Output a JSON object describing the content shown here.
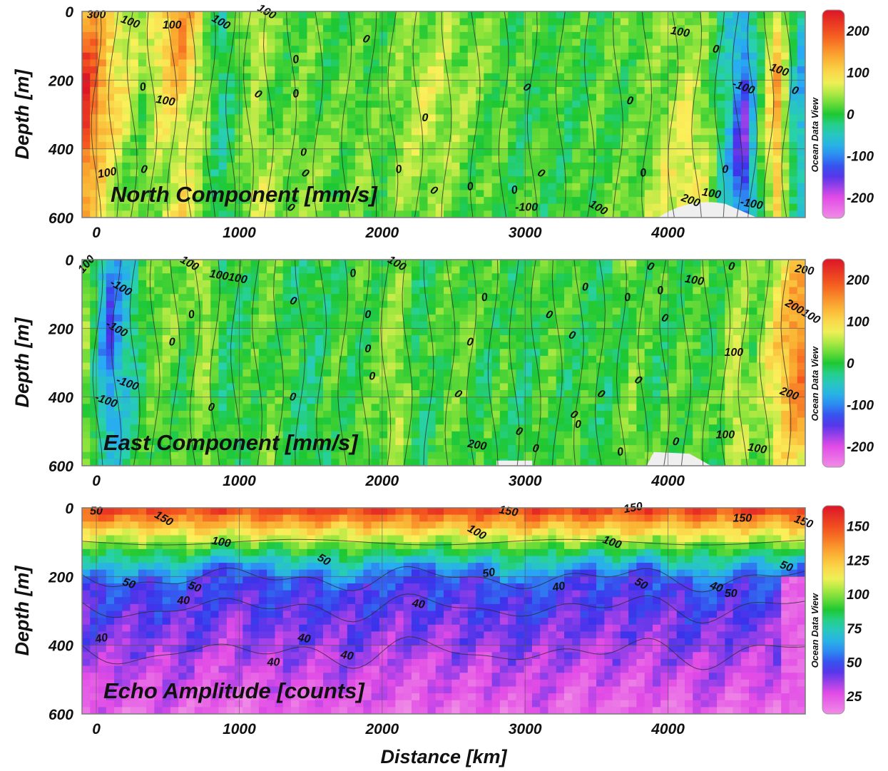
{
  "chart_data": [
    {
      "type": "heatmap",
      "panel_label": "North Component [mm/s]",
      "ylabel": "Depth [m]",
      "xlabel": "",
      "xlim": [
        -100,
        4960
      ],
      "ylim": [
        600,
        0
      ],
      "x_ticks": [
        0,
        1000,
        2000,
        3000,
        4000
      ],
      "y_ticks": [
        0,
        200,
        400,
        600
      ],
      "colorbar": {
        "range": [
          -250,
          250
        ],
        "ticks": [
          200,
          100,
          0,
          -100,
          -200
        ],
        "label": "Ocean Data View"
      },
      "columns": [
        {
          "x": -60,
          "v": 190
        },
        {
          "x": 60,
          "v": 110
        },
        {
          "x": 180,
          "v": 70
        },
        {
          "x": 320,
          "v": 30
        },
        {
          "x": 460,
          "v": 90
        },
        {
          "x": 600,
          "v": 130
        },
        {
          "x": 720,
          "v": 70
        },
        {
          "x": 880,
          "v": -40
        },
        {
          "x": 1000,
          "v": 20
        },
        {
          "x": 1130,
          "v": 80
        },
        {
          "x": 1280,
          "v": 25
        },
        {
          "x": 1450,
          "v": 35
        },
        {
          "x": 1650,
          "v": 15
        },
        {
          "x": 1850,
          "v": 25
        },
        {
          "x": 2000,
          "v": 10
        },
        {
          "x": 2150,
          "v": 40
        },
        {
          "x": 2350,
          "v": 50
        },
        {
          "x": 2550,
          "v": 35
        },
        {
          "x": 2750,
          "v": 20
        },
        {
          "x": 2950,
          "v": 5
        },
        {
          "x": 3150,
          "v": 10
        },
        {
          "x": 3350,
          "v": 5
        },
        {
          "x": 3550,
          "v": 15
        },
        {
          "x": 3750,
          "v": 25
        },
        {
          "x": 3950,
          "v": 50
        },
        {
          "x": 4120,
          "v": 80
        },
        {
          "x": 4280,
          "v": 40
        },
        {
          "x": 4440,
          "v": -70
        },
        {
          "x": 4530,
          "v": -140
        },
        {
          "x": 4650,
          "v": 10
        },
        {
          "x": 4760,
          "v": 120
        },
        {
          "x": 4900,
          "v": -60
        }
      ],
      "contour_labels": [
        {
          "text": "300",
          "x": 0,
          "y": 20
        },
        {
          "text": "100",
          "x": 230,
          "y": 40
        },
        {
          "text": "100",
          "x": 530,
          "y": 50
        },
        {
          "text": "100",
          "x": 860,
          "y": 40
        },
        {
          "text": "100",
          "x": 1180,
          "y": 10
        },
        {
          "text": "0",
          "x": 1880,
          "y": 90
        },
        {
          "text": "0",
          "x": 1400,
          "y": 150
        },
        {
          "text": "0",
          "x": 330,
          "y": 230
        },
        {
          "text": "100",
          "x": 480,
          "y": 270
        },
        {
          "text": "0",
          "x": 1400,
          "y": 250
        },
        {
          "text": "0",
          "x": 1120,
          "y": 250
        },
        {
          "text": "0",
          "x": 3000,
          "y": 230
        },
        {
          "text": "0",
          "x": 2300,
          "y": 320
        },
        {
          "text": "0",
          "x": 3730,
          "y": 270
        },
        {
          "text": "0",
          "x": 4330,
          "y": 120
        },
        {
          "text": "100",
          "x": 4080,
          "y": 70
        },
        {
          "text": "-100",
          "x": 4520,
          "y": 230
        },
        {
          "text": "100",
          "x": 4770,
          "y": 180
        },
        {
          "text": "0",
          "x": 4880,
          "y": 240
        },
        {
          "text": "0",
          "x": 1450,
          "y": 420
        },
        {
          "text": "0",
          "x": 1450,
          "y": 480
        },
        {
          "text": "0",
          "x": 2120,
          "y": 470
        },
        {
          "text": "0",
          "x": 3100,
          "y": 480
        },
        {
          "text": "0",
          "x": 3830,
          "y": 480
        },
        {
          "text": "0",
          "x": 4400,
          "y": 470
        },
        {
          "text": "0",
          "x": 2620,
          "y": 520
        },
        {
          "text": "0",
          "x": 2930,
          "y": 530
        },
        {
          "text": "-100",
          "x": 3010,
          "y": 580
        },
        {
          "text": "100",
          "x": 3500,
          "y": 580
        },
        {
          "text": "200",
          "x": 4150,
          "y": 560
        },
        {
          "text": "100",
          "x": 4300,
          "y": 540
        },
        {
          "text": "-100",
          "x": 4580,
          "y": 570
        },
        {
          "text": "0",
          "x": 330,
          "y": 470
        },
        {
          "text": "100",
          "x": 80,
          "y": 480
        },
        {
          "text": "0",
          "x": 1350,
          "y": 580
        },
        {
          "text": "0",
          "x": 2350,
          "y": 530
        }
      ]
    },
    {
      "type": "heatmap",
      "panel_label": "East Component [mm/s]",
      "ylabel": "Depth [m]",
      "xlabel": "",
      "xlim": [
        -100,
        4960
      ],
      "ylim": [
        600,
        0
      ],
      "x_ticks": [
        0,
        1000,
        2000,
        3000,
        4000
      ],
      "y_ticks": [
        0,
        200,
        400,
        600
      ],
      "colorbar": {
        "range": [
          -250,
          250
        ],
        "ticks": [
          200,
          100,
          0,
          -100,
          -200
        ],
        "label": "Ocean Data View"
      },
      "columns": [
        {
          "x": -60,
          "v": 30
        },
        {
          "x": 80,
          "v": -110
        },
        {
          "x": 200,
          "v": -60
        },
        {
          "x": 340,
          "v": 10
        },
        {
          "x": 480,
          "v": 40
        },
        {
          "x": 620,
          "v": 5
        },
        {
          "x": 760,
          "v": 60
        },
        {
          "x": 900,
          "v": -20
        },
        {
          "x": 1050,
          "v": 5
        },
        {
          "x": 1200,
          "v": 30
        },
        {
          "x": 1350,
          "v": 0
        },
        {
          "x": 1500,
          "v": -20
        },
        {
          "x": 1650,
          "v": 10
        },
        {
          "x": 1800,
          "v": 0
        },
        {
          "x": 1950,
          "v": 15
        },
        {
          "x": 2100,
          "v": 50
        },
        {
          "x": 2250,
          "v": -10
        },
        {
          "x": 2400,
          "v": 10
        },
        {
          "x": 2550,
          "v": 25
        },
        {
          "x": 2700,
          "v": 0
        },
        {
          "x": 2850,
          "v": 10
        },
        {
          "x": 3000,
          "v": -10
        },
        {
          "x": 3150,
          "v": 20
        },
        {
          "x": 3300,
          "v": 5
        },
        {
          "x": 3450,
          "v": 10
        },
        {
          "x": 3600,
          "v": -10
        },
        {
          "x": 3750,
          "v": 40
        },
        {
          "x": 3900,
          "v": 0
        },
        {
          "x": 4050,
          "v": 10
        },
        {
          "x": 4200,
          "v": 20
        },
        {
          "x": 4350,
          "v": 0
        },
        {
          "x": 4450,
          "v": 60
        },
        {
          "x": 4600,
          "v": 20
        },
        {
          "x": 4750,
          "v": 80
        },
        {
          "x": 4900,
          "v": 150
        }
      ],
      "contour_labels": [
        {
          "text": "100",
          "x": -50,
          "y": 20
        },
        {
          "text": "-100",
          "x": 160,
          "y": 90
        },
        {
          "text": "100",
          "x": 640,
          "y": 20
        },
        {
          "text": "100100",
          "x": 920,
          "y": 60
        },
        {
          "text": "100",
          "x": 2090,
          "y": 20
        },
        {
          "text": "-100",
          "x": 130,
          "y": 210
        },
        {
          "text": "-100",
          "x": 210,
          "y": 370
        },
        {
          "text": "0",
          "x": 670,
          "y": 170
        },
        {
          "text": "0",
          "x": 530,
          "y": 250
        },
        {
          "text": "0",
          "x": 1370,
          "y": 130
        },
        {
          "text": "0",
          "x": 1800,
          "y": 50
        },
        {
          "text": "0",
          "x": 1900,
          "y": 170
        },
        {
          "text": "0",
          "x": 1900,
          "y": 270
        },
        {
          "text": "0",
          "x": 1930,
          "y": 350
        },
        {
          "text": "0",
          "x": 2610,
          "y": 250
        },
        {
          "text": "0",
          "x": 2720,
          "y": 120
        },
        {
          "text": "0",
          "x": 3160,
          "y": 170
        },
        {
          "text": "0",
          "x": 3320,
          "y": 230
        },
        {
          "text": "0",
          "x": 3420,
          "y": 90
        },
        {
          "text": "0",
          "x": 3720,
          "y": 120
        },
        {
          "text": "0",
          "x": 3780,
          "y": 360
        },
        {
          "text": "0",
          "x": 3970,
          "y": 180
        },
        {
          "text": "0",
          "x": 3870,
          "y": 30
        },
        {
          "text": "0",
          "x": 3950,
          "y": 100
        },
        {
          "text": "100",
          "x": 4180,
          "y": 70
        },
        {
          "text": "0",
          "x": 4440,
          "y": 30
        },
        {
          "text": "100",
          "x": 4460,
          "y": 280
        },
        {
          "text": "0",
          "x": 1370,
          "y": 410
        },
        {
          "text": "0",
          "x": 800,
          "y": 440
        },
        {
          "text": "0",
          "x": 2520,
          "y": 400
        },
        {
          "text": "0",
          "x": 3330,
          "y": 460
        },
        {
          "text": "0",
          "x": 3520,
          "y": 400
        },
        {
          "text": "0",
          "x": 3370,
          "y": 490
        },
        {
          "text": "0",
          "x": 2950,
          "y": 510
        },
        {
          "text": "0",
          "x": 3070,
          "y": 560
        },
        {
          "text": "200",
          "x": 2660,
          "y": 550
        },
        {
          "text": "100",
          "x": 4400,
          "y": 520
        },
        {
          "text": "100",
          "x": 4620,
          "y": 560
        },
        {
          "text": "0",
          "x": 4050,
          "y": 540
        },
        {
          "text": "0",
          "x": 3670,
          "y": 570
        },
        {
          "text": "200",
          "x": 4840,
          "y": 400
        },
        {
          "text": "200",
          "x": 4950,
          "y": 40
        },
        {
          "text": "200100",
          "x": 4930,
          "y": 160
        },
        {
          "text": "-100",
          "x": 60,
          "y": 420
        }
      ]
    },
    {
      "type": "heatmap",
      "panel_label": "Echo Amplitude [counts]",
      "ylabel": "Depth [m]",
      "xlabel": "Distance [km]",
      "xlim": [
        -100,
        4960
      ],
      "ylim": [
        600,
        0
      ],
      "x_ticks": [
        0,
        1000,
        2000,
        3000,
        4000
      ],
      "y_ticks": [
        0,
        200,
        400,
        600
      ],
      "colorbar": {
        "range": [
          12,
          165
        ],
        "ticks": [
          150,
          125,
          100,
          75,
          50,
          25
        ],
        "label": "Ocean Data View"
      },
      "profile_model": "surface maximum decaying with depth; 100-count isoline near 100 m, 50-count isoline near 200 m",
      "contour_labels": [
        {
          "text": "50",
          "x": 0,
          "y": 20
        },
        {
          "text": "150",
          "x": 460,
          "y": 40
        },
        {
          "text": "100",
          "x": 870,
          "y": 110
        },
        {
          "text": "150",
          "x": 2880,
          "y": 20
        },
        {
          "text": "100",
          "x": 2650,
          "y": 80
        },
        {
          "text": "100",
          "x": 3600,
          "y": 110
        },
        {
          "text": "150",
          "x": 3760,
          "y": 10
        },
        {
          "text": "150",
          "x": 4520,
          "y": 40
        },
        {
          "text": "150",
          "x": 4940,
          "y": 50
        },
        {
          "text": "50",
          "x": 1580,
          "y": 160
        },
        {
          "text": "50",
          "x": 220,
          "y": 230
        },
        {
          "text": "50",
          "x": 680,
          "y": 240
        },
        {
          "text": "40",
          "x": 610,
          "y": 280
        },
        {
          "text": "50",
          "x": 2750,
          "y": 200
        },
        {
          "text": "40",
          "x": 3240,
          "y": 240
        },
        {
          "text": "50",
          "x": 3800,
          "y": 230
        },
        {
          "text": "40",
          "x": 4330,
          "y": 240
        },
        {
          "text": "50",
          "x": 4440,
          "y": 260
        },
        {
          "text": "50",
          "x": 4820,
          "y": 180
        },
        {
          "text": "40",
          "x": 2250,
          "y": 290
        },
        {
          "text": "40",
          "x": 40,
          "y": 390
        },
        {
          "text": "40",
          "x": 1450,
          "y": 390
        },
        {
          "text": "40",
          "x": 1240,
          "y": 460
        },
        {
          "text": "40",
          "x": 1750,
          "y": 440
        }
      ]
    }
  ],
  "colors": {
    "background": "#ffffff",
    "frame": "#7a7a7a",
    "gridline": "#555555",
    "text": "#111111",
    "masked": "#efefef"
  }
}
